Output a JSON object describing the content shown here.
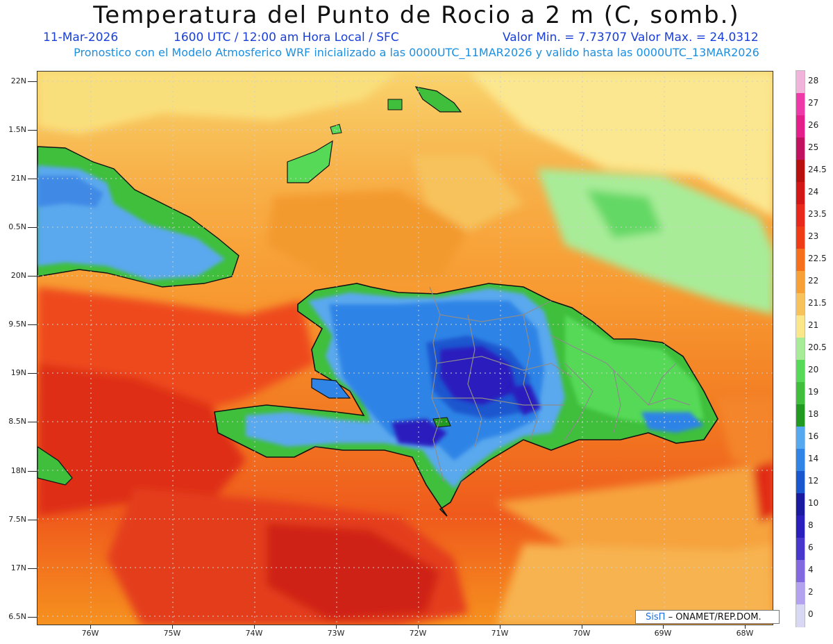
{
  "header": {
    "title": "Temperatura del Punto de Rocio a 2 m (C, somb.)",
    "date": "11-Mar-2026",
    "time": "1600 UTC / 12:00 am Hora Local / SFC",
    "minmax": "Valor Min. = 7.73707  Valor Max. = 24.0312",
    "model_line": "Pronostico con el Modelo Atmosferico WRF inicializado a las 0000UTC_11MAR2026 y valido hasta las  0000UTC_13MAR2026"
  },
  "axes": {
    "lat_labels": [
      "22N",
      "1.5N",
      "21N",
      "0.5N",
      "20N",
      "9.5N",
      "19N",
      "8.5N",
      "18N",
      "7.5N",
      "17N",
      "6.5N"
    ],
    "lon_labels": [
      "76W",
      "75W",
      "74W",
      "73W",
      "72W",
      "71W",
      "70W",
      "69W",
      "68W"
    ]
  },
  "legend": {
    "labels": [
      "28",
      "27",
      "26",
      "25",
      "24.5",
      "24",
      "23.5",
      "23",
      "22.5",
      "22",
      "21.5",
      "21",
      "20.5",
      "20",
      "19",
      "18",
      "16",
      "14",
      "12",
      "10",
      "8",
      "6",
      "4",
      "2",
      "0"
    ],
    "colors": [
      "#f2b3da",
      "#ee3aa8",
      "#e41e8a",
      "#c0125e",
      "#b80f0f",
      "#d31717",
      "#e8281a",
      "#ef3c17",
      "#f6701c",
      "#f7a035",
      "#f8c25a",
      "#fbe68a",
      "#a6ec96",
      "#55d957",
      "#3fbf3c",
      "#229a22",
      "#56a9ef",
      "#2f84e6",
      "#1a56cf",
      "#1a1aa0",
      "#2a1ebd",
      "#4837cc",
      "#8269e0",
      "#b3a2ef",
      "#d8d8f4"
    ]
  },
  "credit": {
    "brand": "SisΠ",
    "text": "– ONAMET/REP.DOM."
  }
}
